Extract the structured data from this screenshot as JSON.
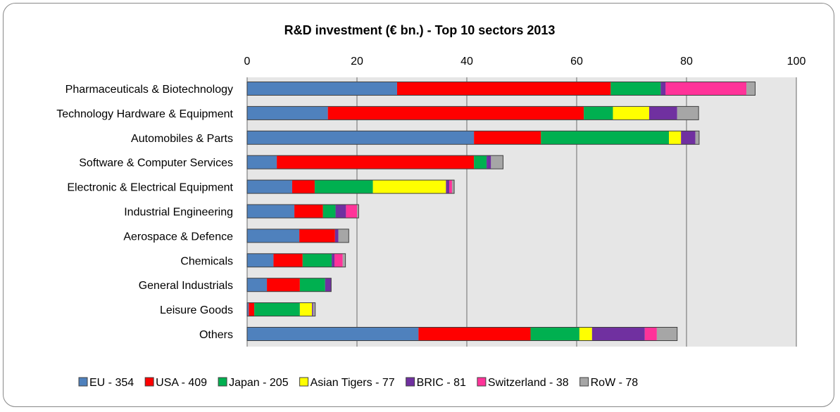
{
  "chart_data": {
    "type": "bar",
    "orientation": "horizontal",
    "stacked": true,
    "title": "R&D investment (€ bn.) - Top 10 sectors 2013",
    "xlim": [
      0,
      100
    ],
    "x_ticks": [
      "0",
      "20",
      "40",
      "60",
      "80",
      "100"
    ],
    "x_axis_position": "top",
    "grid": true,
    "legend_position": "bottom",
    "categories": [
      "Pharmaceuticals & Biotechnology",
      "Technology Hardware & Equipment",
      "Automobiles & Parts",
      "Software & Computer Services",
      "Electronic & Electrical Equipment",
      "Industrial Engineering",
      "Aerospace & Defence",
      "Chemicals",
      "General Industrials",
      "Leisure Goods",
      "Others"
    ],
    "series": [
      {
        "name": "EU - 354",
        "color": "#4F81BD",
        "values": [
          27.3,
          14.7,
          41.3,
          5.4,
          8.2,
          8.6,
          9.5,
          4.8,
          3.6,
          0.3,
          31.2
        ]
      },
      {
        "name": "USA - 409",
        "color": "#FF0000",
        "values": [
          38.9,
          46.6,
          12.2,
          35.9,
          4.1,
          5.2,
          6.5,
          5.3,
          6.0,
          1.0,
          20.4
        ]
      },
      {
        "name": "Japan - 205",
        "color": "#00B050",
        "values": [
          9.1,
          5.3,
          23.3,
          2.3,
          10.6,
          2.3,
          0.0,
          5.3,
          4.6,
          8.3,
          8.9
        ]
      },
      {
        "name": "Asian Tigers - 77",
        "color": "#FFFF00",
        "values": [
          0.0,
          6.6,
          2.2,
          0.0,
          13.3,
          0.0,
          0.0,
          0.0,
          0.0,
          2.2,
          2.3
        ]
      },
      {
        "name": "BRIC - 81",
        "color": "#7030A0",
        "values": [
          0.9,
          5.1,
          2.6,
          0.8,
          0.6,
          1.9,
          0.6,
          0.5,
          1.1,
          0.2,
          9.6
        ]
      },
      {
        "name": "Switzerland - 38",
        "color": "#FF3399",
        "values": [
          14.7,
          0.0,
          0.0,
          0.0,
          0.5,
          2.0,
          0.0,
          1.5,
          0.0,
          0.0,
          2.2
        ]
      },
      {
        "name": "RoW - 78",
        "color": "#A6A6A6",
        "values": [
          1.6,
          3.9,
          0.7,
          2.2,
          0.4,
          0.3,
          1.9,
          0.5,
          0.0,
          0.4,
          3.7
        ]
      }
    ]
  }
}
